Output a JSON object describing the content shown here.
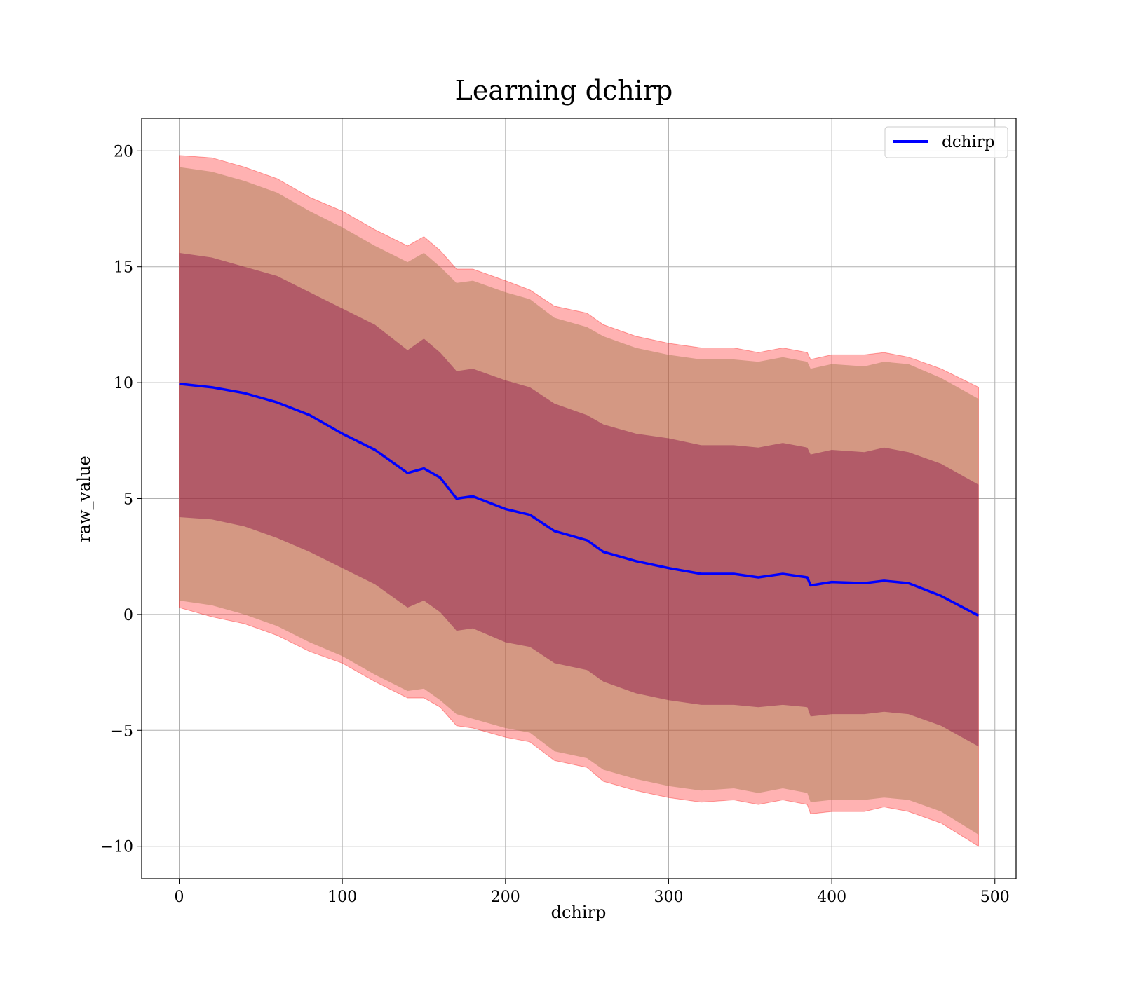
{
  "chart_data": {
    "type": "area",
    "title": "Learning dchirp",
    "xlabel": "dchirp",
    "ylabel": "raw_value",
    "xlim": [
      -23,
      513
    ],
    "ylim": [
      -11.4,
      21.4
    ],
    "xticks": [
      0,
      100,
      200,
      300,
      400,
      500
    ],
    "yticks": [
      -10,
      -5,
      0,
      5,
      10,
      15,
      20
    ],
    "grid": true,
    "legend": {
      "position": "top-right",
      "entries": [
        "dchirp"
      ]
    },
    "colors": {
      "line": "#0000ff",
      "outer_band": "#ff0000",
      "inner_band": "#800040",
      "grid": "#b0b0b0"
    },
    "x": [
      0,
      20,
      40,
      60,
      80,
      100,
      120,
      140,
      150,
      160,
      170,
      180,
      200,
      215,
      230,
      250,
      260,
      280,
      300,
      320,
      340,
      355,
      370,
      385,
      387,
      400,
      420,
      432,
      447,
      467,
      490
    ],
    "series": [
      {
        "name": "dchirp",
        "kind": "line",
        "values": [
          9.95,
          9.8,
          9.55,
          9.15,
          8.6,
          7.8,
          7.1,
          6.1,
          6.3,
          5.9,
          5.0,
          5.1,
          4.55,
          4.3,
          3.6,
          3.2,
          2.7,
          2.3,
          2.0,
          1.75,
          1.75,
          1.6,
          1.75,
          1.6,
          1.25,
          1.4,
          1.35,
          1.45,
          1.35,
          0.8,
          -0.05
        ]
      },
      {
        "name": "outer band upper",
        "kind": "band",
        "values": [
          19.8,
          19.7,
          19.3,
          18.8,
          18.0,
          17.4,
          16.6,
          15.9,
          16.3,
          15.7,
          14.9,
          14.9,
          14.4,
          14.0,
          13.3,
          13.0,
          12.5,
          12.0,
          11.7,
          11.5,
          11.5,
          11.3,
          11.5,
          11.3,
          11.0,
          11.2,
          11.2,
          11.3,
          11.1,
          10.6,
          9.8
        ]
      },
      {
        "name": "outer band lower",
        "kind": "band",
        "values": [
          0.3,
          -0.1,
          -0.4,
          -0.9,
          -1.6,
          -2.1,
          -2.9,
          -3.6,
          -3.6,
          -4.0,
          -4.8,
          -4.9,
          -5.3,
          -5.5,
          -6.3,
          -6.6,
          -7.2,
          -7.6,
          -7.9,
          -8.1,
          -8.0,
          -8.2,
          -8.0,
          -8.2,
          -8.6,
          -8.5,
          -8.5,
          -8.3,
          -8.5,
          -9.0,
          -10.0
        ]
      },
      {
        "name": "mid band upper",
        "kind": "band",
        "values": [
          19.3,
          19.1,
          18.7,
          18.2,
          17.4,
          16.7,
          15.9,
          15.2,
          15.6,
          15.0,
          14.3,
          14.4,
          13.9,
          13.6,
          12.8,
          12.4,
          12.0,
          11.5,
          11.2,
          11.0,
          11.0,
          10.9,
          11.1,
          10.9,
          10.6,
          10.8,
          10.7,
          10.9,
          10.8,
          10.2,
          9.3
        ]
      },
      {
        "name": "mid band lower",
        "kind": "band",
        "values": [
          0.6,
          0.4,
          0.0,
          -0.5,
          -1.2,
          -1.8,
          -2.6,
          -3.3,
          -3.2,
          -3.7,
          -4.3,
          -4.5,
          -4.9,
          -5.1,
          -5.9,
          -6.2,
          -6.7,
          -7.1,
          -7.4,
          -7.6,
          -7.5,
          -7.7,
          -7.5,
          -7.7,
          -8.1,
          -8.0,
          -8.0,
          -7.9,
          -8.0,
          -8.5,
          -9.5
        ]
      },
      {
        "name": "inner band upper",
        "kind": "band",
        "values": [
          15.6,
          15.4,
          15.0,
          14.6,
          13.9,
          13.2,
          12.5,
          11.4,
          11.9,
          11.3,
          10.5,
          10.6,
          10.1,
          9.8,
          9.1,
          8.6,
          8.2,
          7.8,
          7.6,
          7.3,
          7.3,
          7.2,
          7.4,
          7.2,
          6.9,
          7.1,
          7.0,
          7.2,
          7.0,
          6.5,
          5.6
        ]
      },
      {
        "name": "inner band lower",
        "kind": "band",
        "values": [
          4.2,
          4.1,
          3.8,
          3.3,
          2.7,
          2.0,
          1.3,
          0.3,
          0.6,
          0.1,
          -0.7,
          -0.6,
          -1.2,
          -1.4,
          -2.1,
          -2.4,
          -2.9,
          -3.4,
          -3.7,
          -3.9,
          -3.9,
          -4.0,
          -3.9,
          -4.0,
          -4.4,
          -4.3,
          -4.3,
          -4.2,
          -4.3,
          -4.8,
          -5.7
        ]
      }
    ]
  }
}
